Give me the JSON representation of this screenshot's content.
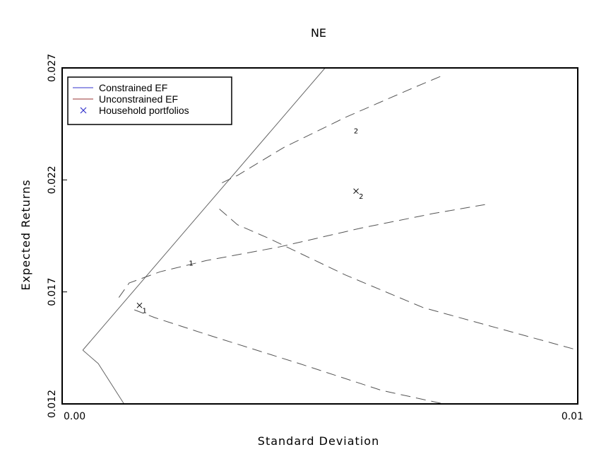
{
  "chart_data": {
    "type": "line",
    "title": "NE",
    "xlabel": "Standard Deviation",
    "ylabel": "Expected Returns",
    "xlim": [
      0,
      0.01
    ],
    "ylim": [
      0.012,
      0.027
    ],
    "x_ticks": [
      {
        "value": 0,
        "label": "0.00"
      },
      {
        "value": 0.01,
        "label": "0.01"
      }
    ],
    "y_ticks": [
      {
        "value": 0.012,
        "label": "0.012"
      },
      {
        "value": 0.017,
        "label": "0.017"
      },
      {
        "value": 0.022,
        "label": "0.022"
      },
      {
        "value": 0.027,
        "label": "0.027"
      }
    ],
    "grid": false,
    "legend_position": "top-left",
    "legend": [
      {
        "label": "Constrained EF",
        "symbol": "line",
        "color": "#3333cc"
      },
      {
        "label": "Unconstrained EF",
        "symbol": "line",
        "color": "#993333"
      },
      {
        "label": "Household portfolios",
        "symbol": "x",
        "color": "#3333cc"
      }
    ],
    "series": [
      {
        "style": "solid",
        "color": "#666666",
        "points": [
          [
            0.0004,
            0.0144
          ],
          [
            0.0051,
            0.027
          ]
        ]
      },
      {
        "style": "solid",
        "color": "#666666",
        "points": [
          [
            0.0004,
            0.0144
          ],
          [
            0.0007,
            0.0138
          ],
          [
            0.0012,
            0.012
          ]
        ]
      },
      {
        "style": "dashed",
        "color": "#555555",
        "points": [
          [
            0.0031,
            0.02187
          ],
          [
            0.0034,
            0.0222
          ],
          [
            0.0043,
            0.02345
          ],
          [
            0.0055,
            0.0248
          ],
          [
            0.0068,
            0.0261
          ],
          [
            0.0074,
            0.02668
          ]
        ]
      },
      {
        "style": "dashed",
        "color": "#555555",
        "points": [
          [
            0.00305,
            0.0207
          ],
          [
            0.0034,
            0.02
          ],
          [
            0.004,
            0.0194
          ],
          [
            0.0055,
            0.01775
          ],
          [
            0.007,
            0.0163
          ],
          [
            0.01,
            0.0144
          ]
        ]
      },
      {
        "style": "dashed",
        "color": "#555555",
        "points": [
          [
            0.0011,
            0.01675
          ],
          [
            0.0013,
            0.0174
          ],
          [
            0.0019,
            0.0179
          ],
          [
            0.0028,
            0.0184
          ],
          [
            0.0042,
            0.019
          ],
          [
            0.0058,
            0.01985
          ],
          [
            0.0072,
            0.0205
          ],
          [
            0.0082,
            0.0209
          ]
        ]
      },
      {
        "style": "dashed",
        "color": "#555555",
        "points": [
          [
            0.0014,
            0.0162
          ],
          [
            0.0018,
            0.01585
          ],
          [
            0.0028,
            0.0151
          ],
          [
            0.0046,
            0.0138
          ],
          [
            0.0062,
            0.0126
          ],
          [
            0.0074,
            0.012
          ]
        ]
      }
    ],
    "household_portfolios": [
      {
        "x": 0.0015,
        "y": 0.0164,
        "label": "1"
      },
      {
        "x": 0.0057,
        "y": 0.0215,
        "label": "2"
      }
    ],
    "curve_labels": [
      {
        "x": 0.0025,
        "y": 0.0183,
        "label": "1"
      },
      {
        "x": 0.0057,
        "y": 0.0242,
        "label": "2"
      }
    ]
  }
}
